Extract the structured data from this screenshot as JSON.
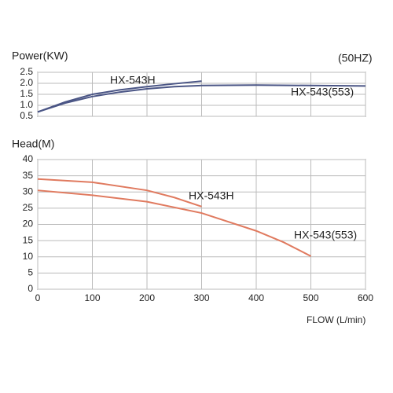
{
  "chart_data": [
    {
      "type": "line",
      "y_label": "Power(KW)",
      "note": "(50HZ)",
      "xlim": [
        0,
        600
      ],
      "xticks": [
        0,
        100,
        200,
        300,
        400,
        500,
        600
      ],
      "xtick_labels": false,
      "ylim": [
        0.5,
        2.5
      ],
      "yticks": [
        0.5,
        {
          "value": 1.0,
          "label": "1.0"
        },
        1.5,
        {
          "value": 2.0,
          "label": "2.0"
        },
        2.5
      ],
      "grid": true,
      "series": [
        {
          "name": "HX-543H",
          "color": "#4a5585",
          "x": [
            0,
            50,
            100,
            150,
            200,
            250,
            300
          ],
          "values": [
            0.7,
            1.15,
            1.5,
            1.7,
            1.85,
            1.98,
            2.1
          ]
        },
        {
          "name": "HX-543(553)",
          "color": "#4a5585",
          "x": [
            0,
            50,
            100,
            150,
            200,
            250,
            300,
            400,
            500,
            600
          ],
          "values": [
            0.7,
            1.1,
            1.4,
            1.6,
            1.75,
            1.85,
            1.9,
            1.92,
            1.9,
            1.88
          ]
        }
      ]
    },
    {
      "type": "line",
      "y_label": "Head(M)",
      "x_label": "FLOW (L/min)",
      "xlim": [
        0,
        600
      ],
      "xticks": [
        0,
        100,
        200,
        300,
        400,
        500,
        600
      ],
      "xtick_labels": true,
      "ylim": [
        0,
        40
      ],
      "yticks": [
        0,
        5,
        10,
        15,
        20,
        25,
        30,
        35,
        40
      ],
      "grid": true,
      "series": [
        {
          "name": "HX-543H",
          "color": "#e07a5f",
          "x": [
            0,
            100,
            200,
            250,
            300
          ],
          "values": [
            34,
            33,
            30.5,
            28.3,
            25.5
          ]
        },
        {
          "name": "HX-543(553)",
          "color": "#e07a5f",
          "x": [
            0,
            100,
            200,
            300,
            400,
            450,
            500
          ],
          "values": [
            30.5,
            29,
            27,
            23.5,
            18,
            14.5,
            10.2
          ]
        }
      ]
    }
  ]
}
